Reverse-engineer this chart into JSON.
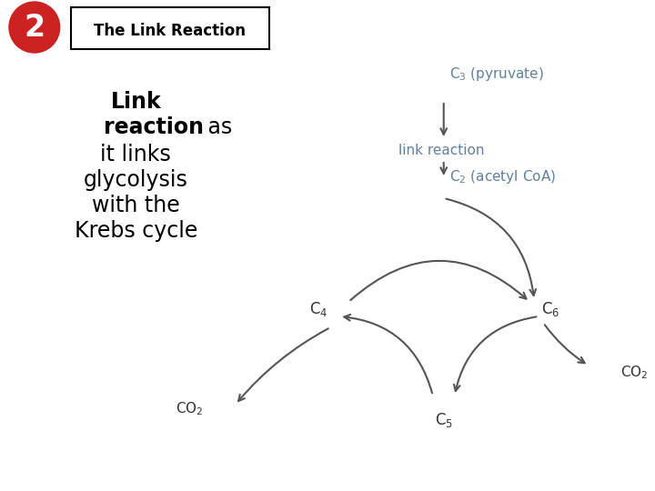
{
  "bg_color": "#ffffff",
  "arrow_color": "#555555",
  "link_reaction_color": "#6080a0",
  "text_color": "#333333",
  "title": "The Link Reaction",
  "badge_color": "#cc2222",
  "badge_text": "2",
  "left_bold": "Link\nreaction",
  "left_normal_lines": [
    "as",
    "it links",
    "glycolysis",
    "with the",
    "Krebs cycle"
  ],
  "py_label": "C$_3$ (pyruvate)",
  "lr_label": "link reaction",
  "ac_label": "C$_2$ (acetyl CoA)",
  "c4_label": "C$_4$",
  "c5_label": "C$_5$",
  "c6_label": "C$_6$",
  "co2_label": "CO$_2$"
}
